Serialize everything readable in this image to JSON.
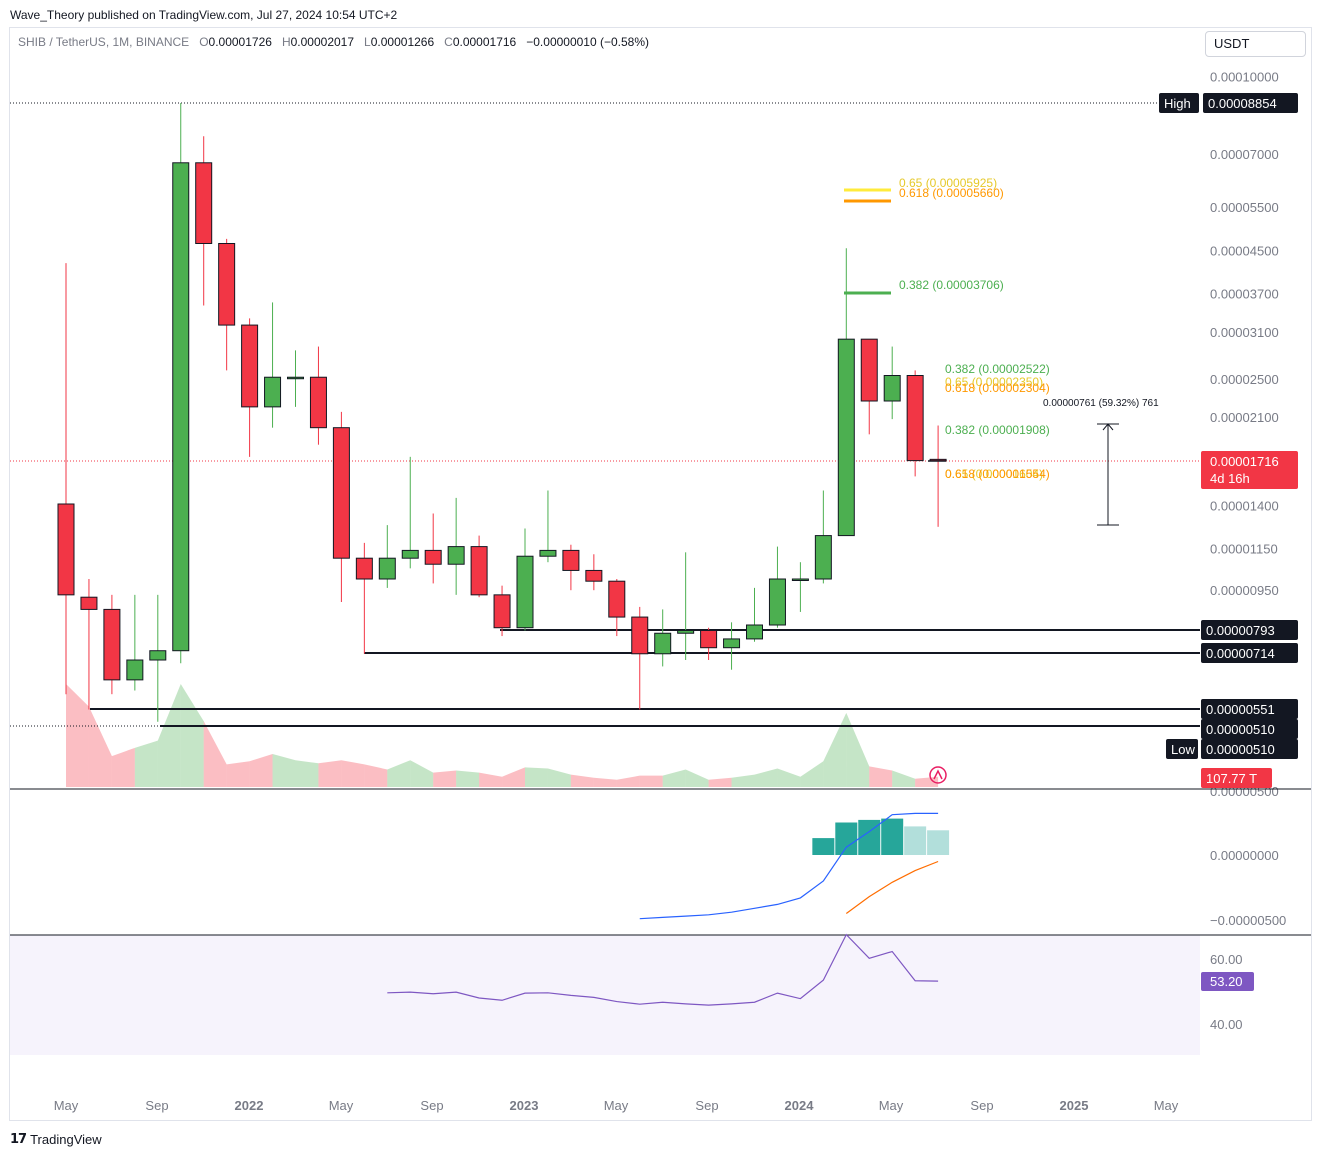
{
  "header": {
    "attribution": "Wave_Theory published on TradingView.com, Jul 27, 2024 10:54 UTC+2"
  },
  "legend": {
    "symbol": "SHIB / TetherUS, 1M, BINANCE",
    "o_label": "O",
    "o": "0.00001726",
    "h_label": "H",
    "h": "0.00002017",
    "l_label": "L",
    "l": "0.00001266",
    "c_label": "C",
    "c": "0.00001716",
    "change": "−0.00000010 (−0.58%)"
  },
  "currency_button": "USDT",
  "footer": {
    "brand": "TradingView"
  },
  "colors": {
    "up": "#4caf50",
    "down": "#f23645",
    "grid": "#f0f3fa",
    "fib_green": "#4caf50",
    "fib_orange": "#ff9800",
    "fib_yellow": "#ffeb3b",
    "macd_line": "#2962ff",
    "signal_line": "#ff6d00",
    "rsi": "#7e57c2",
    "hist_strong": "#26a69a",
    "hist_weak": "#b2dfdb"
  },
  "chart_data": [
    {
      "type": "candlestick",
      "title": "SHIB / TetherUS, 1M, BINANCE",
      "scale": "log",
      "y_ticks": [
        "0.00010000",
        "0.00008854",
        "0.00007000",
        "0.00005500",
        "0.00004500",
        "0.00003700",
        "0.00003100",
        "0.00002500",
        "0.00002100",
        "0.00001400",
        "0.00001150",
        "0.00000950",
        "0.00000500"
      ],
      "x_ticks": [
        "May",
        "Sep",
        "2022",
        "May",
        "Sep",
        "2023",
        "May",
        "Sep",
        "2024",
        "May",
        "Sep",
        "2025",
        "May"
      ],
      "ohlc": [
        {
          "o": 1.41e-05,
          "h": 4.25e-05,
          "l": 5.9e-06,
          "c": 9.3e-06,
          "t": "2021-05"
        },
        {
          "o": 9.2e-06,
          "h": 1e-05,
          "l": 5.5e-06,
          "c": 8.7e-06,
          "t": "2021-06"
        },
        {
          "o": 8.7e-06,
          "h": 9.3e-06,
          "l": 5.9e-06,
          "c": 6.3e-06,
          "t": "2021-07"
        },
        {
          "o": 6.3e-06,
          "h": 9.3e-06,
          "l": 6e-06,
          "c": 6.9e-06,
          "t": "2021-08"
        },
        {
          "o": 6.9e-06,
          "h": 9.3e-06,
          "l": 5.2e-06,
          "c": 7.2e-06,
          "t": "2021-09"
        },
        {
          "o": 7.2e-06,
          "h": 8.85e-05,
          "l": 6.8e-06,
          "c": 6.73e-05,
          "t": "2021-10"
        },
        {
          "o": 6.73e-05,
          "h": 7.6e-05,
          "l": 3.5e-05,
          "c": 4.65e-05,
          "t": "2021-11"
        },
        {
          "o": 4.65e-05,
          "h": 4.75e-05,
          "l": 2.6e-05,
          "c": 3.2e-05,
          "t": "2021-12"
        },
        {
          "o": 3.2e-05,
          "h": 3.3e-05,
          "l": 1.75e-05,
          "c": 2.2e-05,
          "t": "2022-01"
        },
        {
          "o": 2.2e-05,
          "h": 3.55e-05,
          "l": 2e-05,
          "c": 2.52e-05,
          "t": "2022-02"
        },
        {
          "o": 2.52e-05,
          "h": 2.85e-05,
          "l": 2.2e-05,
          "c": 2.52e-05,
          "t": "2022-03"
        },
        {
          "o": 2.52e-05,
          "h": 2.9e-05,
          "l": 1.85e-05,
          "c": 2e-05,
          "t": "2022-04"
        },
        {
          "o": 2e-05,
          "h": 2.15e-05,
          "l": 9e-06,
          "c": 1.1e-05,
          "t": "2022-05"
        },
        {
          "o": 1.1e-05,
          "h": 1.18e-05,
          "l": 7.1e-06,
          "c": 1e-05,
          "t": "2022-06"
        },
        {
          "o": 1e-05,
          "h": 1.28e-05,
          "l": 9.6e-06,
          "c": 1.1e-05,
          "t": "2022-07"
        },
        {
          "o": 1.1e-05,
          "h": 1.75e-05,
          "l": 1.05e-05,
          "c": 1.14e-05,
          "t": "2022-08"
        },
        {
          "o": 1.14e-05,
          "h": 1.35e-05,
          "l": 9.8e-06,
          "c": 1.07e-05,
          "t": "2022-09"
        },
        {
          "o": 1.07e-05,
          "h": 1.45e-05,
          "l": 9.3e-06,
          "c": 1.16e-05,
          "t": "2022-10"
        },
        {
          "o": 1.16e-05,
          "h": 1.22e-05,
          "l": 9.2e-06,
          "c": 9.3e-06,
          "t": "2022-11"
        },
        {
          "o": 9.3e-06,
          "h": 9.7e-06,
          "l": 7.7e-06,
          "c": 8e-06,
          "t": "2022-12"
        },
        {
          "o": 8e-06,
          "h": 1.26e-05,
          "l": 7.9e-06,
          "c": 1.11e-05,
          "t": "2023-01"
        },
        {
          "o": 1.11e-05,
          "h": 1.5e-05,
          "l": 1.08e-05,
          "c": 1.14e-05,
          "t": "2023-02"
        },
        {
          "o": 1.14e-05,
          "h": 1.17e-05,
          "l": 9.5e-06,
          "c": 1.04e-05,
          "t": "2023-03"
        },
        {
          "o": 1.04e-05,
          "h": 1.12e-05,
          "l": 9.5e-06,
          "c": 9.9e-06,
          "t": "2023-04"
        },
        {
          "o": 9.9e-06,
          "h": 1e-05,
          "l": 7.7e-06,
          "c": 8.4e-06,
          "t": "2023-05"
        },
        {
          "o": 8.4e-06,
          "h": 8.8e-06,
          "l": 5.5e-06,
          "c": 7.1e-06,
          "t": "2023-06"
        },
        {
          "o": 7.1e-06,
          "h": 8.7e-06,
          "l": 6.7e-06,
          "c": 7.8e-06,
          "t": "2023-07"
        },
        {
          "o": 7.8e-06,
          "h": 1.13e-05,
          "l": 6.9e-06,
          "c": 7.9e-06,
          "t": "2023-08"
        },
        {
          "o": 7.9e-06,
          "h": 8e-06,
          "l": 6.9e-06,
          "c": 7.3e-06,
          "t": "2023-09"
        },
        {
          "o": 7.3e-06,
          "h": 8.2e-06,
          "l": 6.6e-06,
          "c": 7.6e-06,
          "t": "2023-10"
        },
        {
          "o": 7.6e-06,
          "h": 9.6e-06,
          "l": 7.5e-06,
          "c": 8.1e-06,
          "t": "2023-11"
        },
        {
          "o": 8.1e-06,
          "h": 1.16e-05,
          "l": 8e-06,
          "c": 1e-05,
          "t": "2023-12"
        },
        {
          "o": 1e-05,
          "h": 1.08e-05,
          "l": 8.6e-06,
          "c": 1e-05,
          "t": "2024-01"
        },
        {
          "o": 1e-05,
          "h": 1.5e-05,
          "l": 9.8e-06,
          "c": 1.22e-05,
          "t": "2024-02"
        },
        {
          "o": 1.22e-05,
          "h": 4.55e-05,
          "l": 1.22e-05,
          "c": 3e-05,
          "t": "2024-03"
        },
        {
          "o": 3e-05,
          "h": 3e-05,
          "l": 1.94e-05,
          "c": 2.26e-05,
          "t": "2024-04"
        },
        {
          "o": 2.26e-05,
          "h": 2.9e-05,
          "l": 2.08e-05,
          "c": 2.54e-05,
          "t": "2024-05"
        },
        {
          "o": 2.54e-05,
          "h": 2.6e-05,
          "l": 1.6e-05,
          "c": 1.72e-05,
          "t": "2024-06"
        },
        {
          "o": 1.73e-05,
          "h": 2.02e-05,
          "l": 1.27e-05,
          "c": 1.72e-05,
          "t": "2024-07"
        }
      ],
      "levels": [
        {
          "label": "High",
          "value": "0.00008854"
        },
        {
          "label": "",
          "value": "0.00000793"
        },
        {
          "label": "",
          "value": "0.00000714"
        },
        {
          "label": "",
          "value": "0.00000551"
        },
        {
          "label": "",
          "value": "0.00000510"
        },
        {
          "label": "Low",
          "value": "0.00000510"
        }
      ],
      "fibonacci": [
        {
          "text": "0.65 (0.00005925)",
          "color": "#ffeb3b"
        },
        {
          "text": "0.618 (0.00005660)",
          "color": "#ff9800"
        },
        {
          "text": "0.382 (0.00003706)",
          "color": "#4caf50"
        },
        {
          "text": "0.382 (0.00002522)",
          "color": "#4caf50"
        },
        {
          "text": "0.65 (0.00002350)",
          "color": "#ffeb3b"
        },
        {
          "text": "0.618 (0.00002304)",
          "color": "#ff9800"
        },
        {
          "text": "0.382 (0.00001908)",
          "color": "#4caf50"
        },
        {
          "text": "0.65 (0.00001604)",
          "color": "#ffeb3b"
        },
        {
          "text": "0.618 (0.00001554)",
          "color": "#ff9800"
        }
      ],
      "measure": {
        "text": "0.00000761 (59.32%) 761"
      },
      "current_price": {
        "value": "0.00001716",
        "countdown": "4d 16h"
      },
      "volume": {
        "last_label": "107.77 T",
        "values": [
          100,
          78,
          30,
          38,
          45,
          100,
          64,
          22,
          25,
          32,
          26,
          23,
          26,
          22,
          17,
          26,
          14,
          16,
          14,
          10,
          19,
          18,
          12,
          9,
          7,
          11,
          11,
          17,
          7,
          9,
          12,
          18,
          10,
          25,
          72,
          20,
          16,
          8,
          10
        ]
      }
    },
    {
      "type": "bar",
      "title": "MACD",
      "y_ticks": [
        "0.00000000",
        "−0.00000500"
      ],
      "histogram": [
        0,
        0,
        0,
        0,
        0,
        0,
        0,
        0,
        0,
        0,
        0,
        0,
        0,
        0,
        0,
        0,
        0,
        0,
        0,
        0,
        0,
        0,
        0,
        0,
        0,
        0,
        0,
        0,
        0,
        0,
        0,
        0,
        0,
        1.3e-06,
        2.5e-06,
        2.7e-06,
        2.8e-06,
        2.2e-06,
        1.9e-06
      ],
      "macd": [
        null,
        null,
        null,
        null,
        null,
        null,
        null,
        null,
        null,
        null,
        null,
        null,
        null,
        null,
        null,
        null,
        null,
        null,
        null,
        null,
        null,
        null,
        null,
        null,
        null,
        -4.9e-06,
        -4.8e-06,
        -4.7e-06,
        -4.6e-06,
        -4.4e-06,
        -4.1e-06,
        -3.8e-06,
        -3.3e-06,
        -2e-06,
        6e-07,
        1.8e-06,
        3.1e-06,
        3.2e-06,
        3.2e-06
      ],
      "signal": [
        null,
        null,
        null,
        null,
        null,
        null,
        null,
        null,
        null,
        null,
        null,
        null,
        null,
        null,
        null,
        null,
        null,
        null,
        null,
        null,
        null,
        null,
        null,
        null,
        null,
        null,
        null,
        null,
        null,
        null,
        null,
        null,
        null,
        null,
        -4.5e-06,
        -3.2e-06,
        -2.1e-06,
        -1.2e-06,
        -5e-07
      ]
    },
    {
      "type": "line",
      "title": "RSI",
      "y_ticks": [
        "60.00",
        "40.00"
      ],
      "last_label": "53.20",
      "values": [
        null,
        null,
        null,
        null,
        null,
        null,
        null,
        null,
        null,
        null,
        null,
        null,
        null,
        null,
        49.6,
        49.8,
        49.3,
        49.8,
        48.0,
        47.3,
        49.5,
        49.6,
        48.8,
        48.2,
        46.9,
        46.1,
        46.7,
        46.2,
        45.8,
        46.2,
        46.7,
        49.5,
        47.8,
        53.5,
        67.5,
        60.2,
        62.3,
        53.3,
        53.2
      ]
    }
  ]
}
